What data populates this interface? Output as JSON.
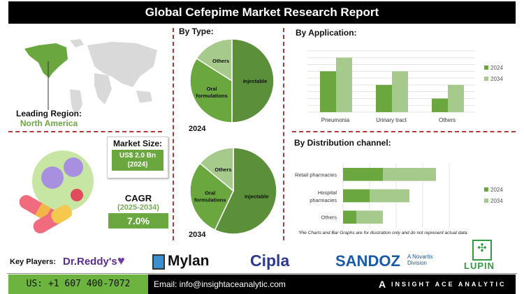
{
  "title": "Global Cefepime Market Research Report",
  "region": {
    "label": "Leading Region:",
    "value": "North America",
    "highlight_color": "#6aa83f"
  },
  "market_size": {
    "label": "Market Size:",
    "value": "US$ 2.0 Bn",
    "year": "(2024)"
  },
  "cagr": {
    "label": "CAGR",
    "period": "(2025-2034)",
    "value": "7.0%"
  },
  "by_type": {
    "heading": "By Type:"
  },
  "by_application": {
    "heading": "By Application:"
  },
  "by_distribution": {
    "heading": "By Distribution channel:"
  },
  "note": "*Pie Charts and Bar Graphs are for illustration only and do not represent actual data.",
  "colors": {
    "dark_green": "#5b8f3a",
    "mid_green": "#6aa83f",
    "light_green": "#a6c98c",
    "divider": "#b03a3a"
  },
  "chart_data": [
    {
      "type": "pie",
      "title": "2024",
      "labels": [
        "Injectable",
        "Oral formulations",
        "Others"
      ],
      "values": [
        50,
        34,
        16
      ]
    },
    {
      "type": "pie",
      "title": "2034",
      "labels": [
        "Injectable",
        "Oral formulations",
        "Others"
      ],
      "values": [
        57,
        29,
        14
      ]
    },
    {
      "type": "bar",
      "categories": [
        "Pneumonia",
        "Urinary tract infections",
        "Others"
      ],
      "series": [
        {
          "name": "2024",
          "values": [
            6,
            4,
            2
          ]
        },
        {
          "name": "2034",
          "values": [
            8,
            6,
            4
          ]
        }
      ],
      "ylim": [
        0,
        9
      ],
      "grid": true,
      "legend": "right"
    },
    {
      "type": "bar",
      "orientation": "horizontal",
      "stacked": true,
      "categories": [
        "Retail pharmacies",
        "Hospital pharmacies",
        "Others"
      ],
      "series": [
        {
          "name": "2024",
          "values": [
            1.5,
            1.0,
            0.5
          ]
        },
        {
          "name": "2034",
          "values": [
            2.0,
            1.5,
            1.0
          ]
        }
      ],
      "xlim": [
        0,
        4
      ],
      "grid": true,
      "legend": "right"
    }
  ],
  "key_players": {
    "label": "Key Players:",
    "companies": [
      "Dr.Reddy's",
      "Mylan",
      "Cipla",
      "SANDOZ",
      "LUPIN"
    ],
    "sandoz_sub": "A Novartis Division"
  },
  "footer": {
    "phone": "US: +1 607 400-7072",
    "email": "Email: info@insightaceanalytic.com",
    "brand": "INSIGHT ACE ANALYTIC"
  }
}
